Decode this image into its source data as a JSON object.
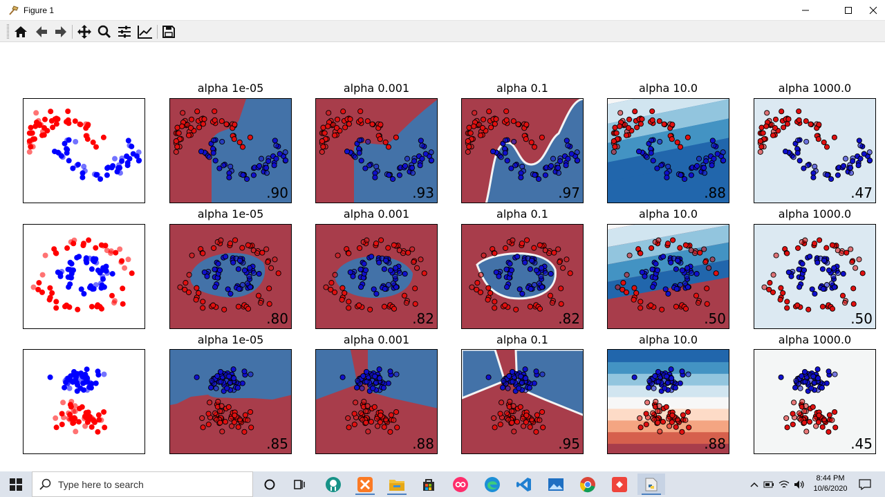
{
  "window": {
    "title": "Figure 1"
  },
  "toolbar": {
    "buttons": [
      "home-icon",
      "back-icon",
      "forward-icon",
      "pan-icon",
      "zoom-icon",
      "configure-subplots-icon",
      "edit-axes-icon",
      "save-icon"
    ]
  },
  "colors": {
    "red_class": "#a83d4b",
    "blue_class": "#4372a8",
    "red_point": "#ff0000",
    "blue_point": "#0000ff"
  },
  "panel_titles": [
    "alpha 1e-05",
    "alpha 0.001",
    "alpha 0.1",
    "alpha 10.0",
    "alpha 1000.0"
  ],
  "rows": [
    {
      "dataset": "moons",
      "scores": [
        ".90",
        ".93",
        ".97",
        ".88",
        ".47"
      ]
    },
    {
      "dataset": "circles",
      "scores": [
        ".80",
        ".82",
        ".82",
        ".50",
        ".50"
      ]
    },
    {
      "dataset": "linearly separable",
      "scores": [
        ".85",
        ".88",
        ".95",
        ".88",
        ".45"
      ]
    }
  ],
  "taskbar": {
    "search_placeholder": "Type here to search",
    "time": "8:44 PM",
    "date": "10/6/2020",
    "apps": [
      "task-view-icon",
      "gitkraken-icon",
      "xampp-icon",
      "file-explorer-icon",
      "store-icon",
      "flickr-icon",
      "edge-icon",
      "vscode-icon",
      "photos-icon",
      "chrome-icon",
      "anydesk-icon",
      "python-figure-icon"
    ]
  }
}
